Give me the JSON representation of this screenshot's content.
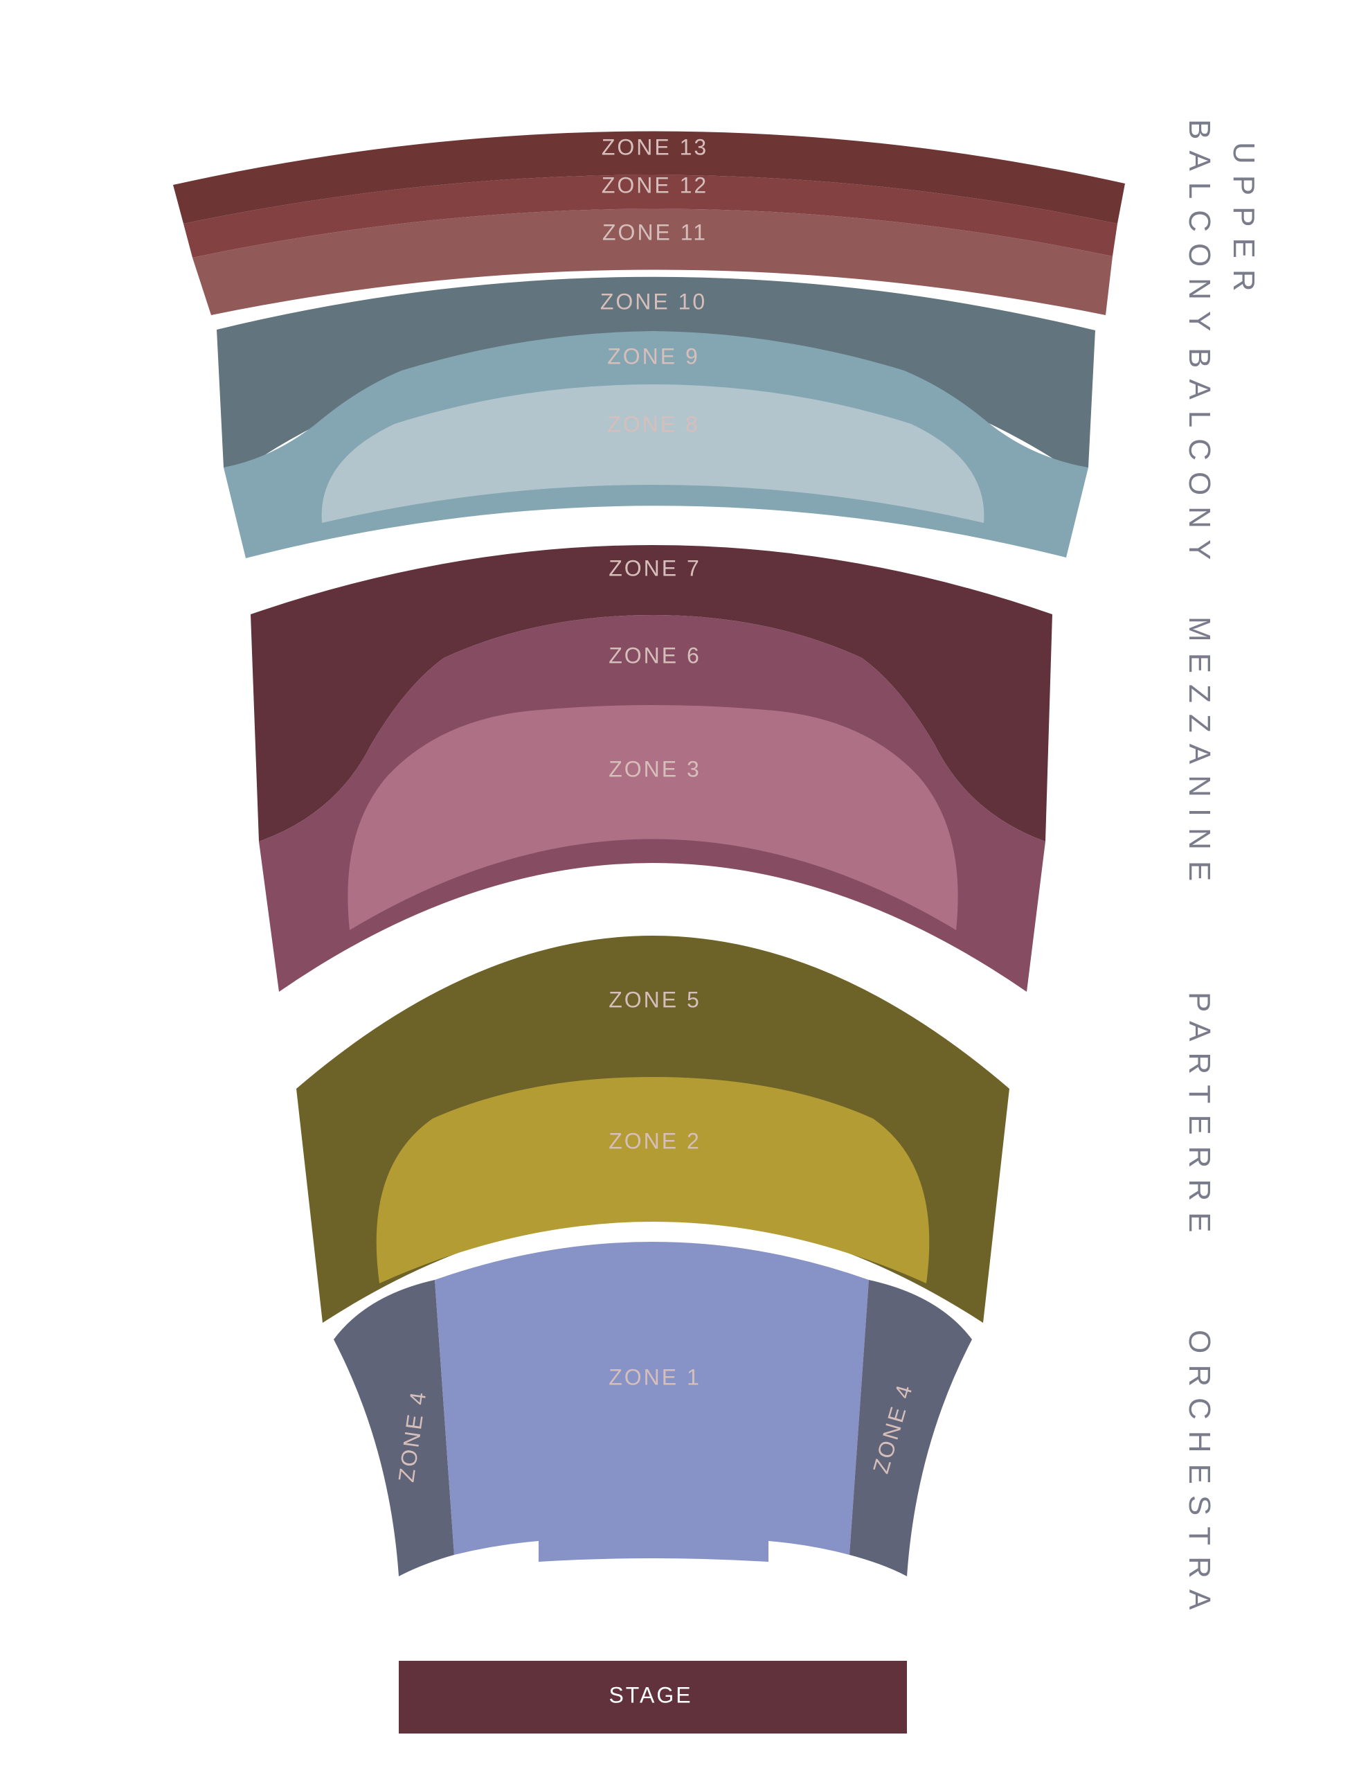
{
  "levels": {
    "upper_balcony_line1": "UPPER",
    "upper_balcony_line2": "BALCONY",
    "balcony": "BALCONY",
    "mezzanine": "MEZZANINE",
    "parterre": "PARTERRE",
    "orchestra": "ORCHESTRA"
  },
  "zones": {
    "z13": "ZONE 13",
    "z12": "ZONE 12",
    "z11": "ZONE 11",
    "z10": "ZONE 10",
    "z9": "ZONE 9",
    "z8": "ZONE 8",
    "z7": "ZONE 7",
    "z6": "ZONE 6",
    "z3": "ZONE 3",
    "z5": "ZONE 5",
    "z2": "ZONE 2",
    "z1": "ZONE 1",
    "z4_left": "ZONE 4",
    "z4_right": "ZONE 4"
  },
  "stage": "STAGE",
  "colors": {
    "zone13": "#6e3535",
    "zone12": "#844141",
    "zone11": "#925959",
    "zone10": "#62747d",
    "zone9": "#84a6b2",
    "zone8": "#b2c5cd",
    "zone7": "#62323c",
    "zone6": "#854c62",
    "zone3": "#ae7084",
    "zone5": "#6d6228",
    "zone2": "#b39c33",
    "zone1": "#8792c6",
    "zone4": "#5f6479",
    "stage": "#62323c",
    "zone_text": "#d6bebb",
    "level_text": "#7a7c8c"
  }
}
